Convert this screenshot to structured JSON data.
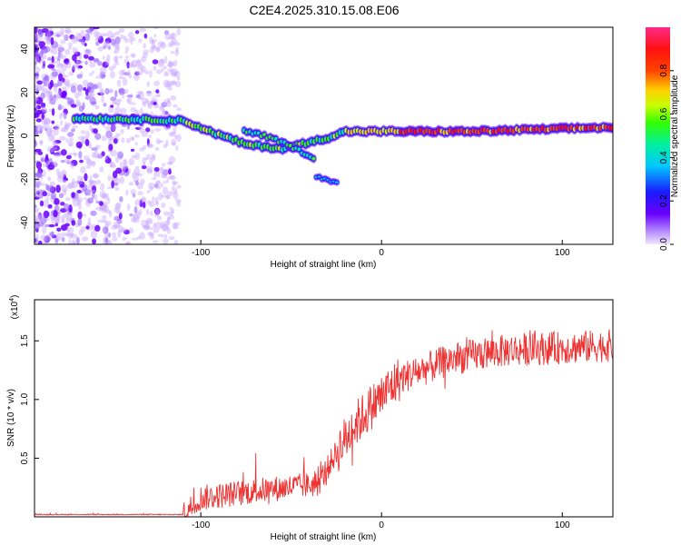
{
  "title": "C2E4.2025.310.15.08.E06",
  "chart_data": [
    {
      "type": "heatmap",
      "name": "spectrogram",
      "xlabel": "Height of straight line (km)",
      "ylabel": "Frequency (Hz)",
      "xlim": [
        -192,
        128
      ],
      "ylim": [
        -50,
        50
      ],
      "xticks": [
        -100,
        0,
        100
      ],
      "xtick_labels": [
        "-100",
        "0",
        "100"
      ],
      "yticks": [
        -40,
        -20,
        0,
        20,
        40
      ],
      "ytick_labels": [
        "-40",
        "-20",
        "0",
        "20",
        "40"
      ],
      "colorbar": {
        "label": "Normalized spectral amplitude",
        "range": [
          0,
          1
        ],
        "ticks": [
          0.0,
          0.2,
          0.4,
          0.6,
          0.8
        ],
        "tick_labels": [
          "0.0",
          "0.2",
          "0.4",
          "0.6",
          "0.8"
        ]
      },
      "ridge_main": {
        "x": [
          -160,
          -110,
          -95,
          -75,
          -55,
          -40,
          -30,
          -20,
          0,
          50,
          90,
          128
        ],
        "freq": [
          8,
          7,
          2,
          -4,
          -6,
          -3,
          -1,
          2,
          2,
          2,
          3,
          4
        ]
      },
      "ridge_secondary": {
        "x": [
          -75,
          -65,
          -55,
          -45,
          -38
        ],
        "freq": [
          2,
          0,
          -3,
          -7,
          -10
        ]
      },
      "ridge_tail": {
        "x": [
          -36,
          -30,
          -24
        ],
        "freq": [
          -19,
          -20,
          -22
        ]
      }
    },
    {
      "type": "line",
      "name": "snr",
      "xlabel": "Height of straight line (km)",
      "ylabel": "SNR (10 * v/v)",
      "scale_label": "(x10",
      "scale_exp": "4",
      "xlim": [
        -192,
        128
      ],
      "ylim": [
        0,
        1.85
      ],
      "xticks": [
        -100,
        0,
        100
      ],
      "xtick_labels": [
        "-100",
        "0",
        "100"
      ],
      "yticks": [
        0.5,
        1.0,
        1.5
      ],
      "ytick_labels": [
        "0.5",
        "1.0",
        "1.5"
      ],
      "color": "#ee3333",
      "envelope_x": [
        -192,
        -110,
        -100,
        -70,
        -35,
        -25,
        -15,
        -5,
        10,
        40,
        70,
        128
      ],
      "envelope_y": [
        0.02,
        0.02,
        0.16,
        0.22,
        0.28,
        0.55,
        0.78,
        0.95,
        1.18,
        1.35,
        1.42,
        1.46
      ]
    }
  ]
}
